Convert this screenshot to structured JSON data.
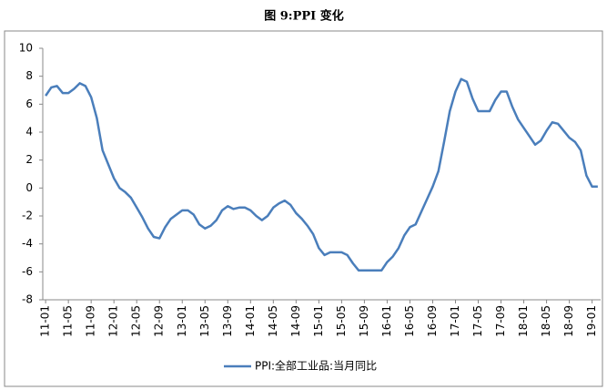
{
  "chart_data": {
    "type": "line",
    "title": "图 9:PPI 变化",
    "categories": [
      "11-01",
      null,
      null,
      null,
      "11-05",
      null,
      null,
      null,
      "11-09",
      null,
      null,
      null,
      "12-01",
      null,
      null,
      null,
      "12-05",
      null,
      null,
      null,
      "12-09",
      null,
      null,
      null,
      "13-01",
      null,
      null,
      null,
      "13-05",
      null,
      null,
      null,
      "13-09",
      null,
      null,
      null,
      "14-01",
      null,
      null,
      null,
      "14-05",
      null,
      null,
      null,
      "14-09",
      null,
      null,
      null,
      "15-01",
      null,
      null,
      null,
      "15-05",
      null,
      null,
      null,
      "15-09",
      null,
      null,
      null,
      "16-01",
      null,
      null,
      null,
      "16-05",
      null,
      null,
      null,
      "16-09",
      null,
      null,
      null,
      "17-01",
      null,
      null,
      null,
      "17-05",
      null,
      null,
      null,
      "17-09",
      null,
      null,
      null,
      "18-01",
      null,
      null,
      null,
      "18-05",
      null,
      null,
      null,
      "18-09",
      null,
      null,
      null,
      "19-01",
      null
    ],
    "series": [
      {
        "name": "PPI:全部工业品:当月同比",
        "color": "#4a7ebb",
        "values": [
          6.6,
          7.2,
          7.3,
          6.8,
          6.8,
          7.1,
          7.5,
          7.3,
          6.5,
          5.0,
          2.7,
          1.7,
          0.7,
          0.0,
          -0.3,
          -0.7,
          -1.4,
          -2.1,
          -2.9,
          -3.5,
          -3.6,
          -2.8,
          -2.2,
          -1.9,
          -1.6,
          -1.6,
          -1.9,
          -2.6,
          -2.9,
          -2.7,
          -2.3,
          -1.6,
          -1.3,
          -1.5,
          -1.4,
          -1.4,
          -1.6,
          -2.0,
          -2.3,
          -2.0,
          -1.4,
          -1.1,
          -0.9,
          -1.2,
          -1.8,
          -2.2,
          -2.7,
          -3.3,
          -4.3,
          -4.8,
          -4.6,
          -4.6,
          -4.6,
          -4.8,
          -5.4,
          -5.9,
          -5.9,
          -5.9,
          -5.9,
          -5.9,
          -5.3,
          -4.9,
          -4.3,
          -3.4,
          -2.8,
          -2.6,
          -1.7,
          -0.8,
          0.1,
          1.2,
          3.3,
          5.5,
          6.9,
          7.8,
          7.6,
          6.4,
          5.5,
          5.5,
          5.5,
          6.3,
          6.9,
          6.9,
          5.8,
          4.9,
          4.3,
          3.7,
          3.1,
          3.4,
          4.1,
          4.7,
          4.6,
          4.1,
          3.6,
          3.3,
          2.7,
          0.9,
          0.1,
          0.1
        ]
      }
    ],
    "ylim": [
      -8,
      10
    ],
    "yticks": [
      -8,
      -6,
      -4,
      -2,
      0,
      2,
      4,
      6,
      8,
      10
    ],
    "legend": "bottom"
  }
}
